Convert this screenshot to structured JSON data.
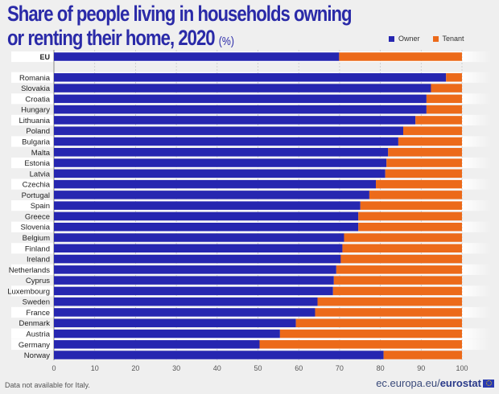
{
  "title_main": "Share of people living in households owning or renting their home, 2020",
  "title_line1": "Share of people living in households owning",
  "title_line2": "or renting their home, 2020",
  "title_unit": "(%)",
  "legend": [
    {
      "label": "Owner",
      "color": "#2626b0"
    },
    {
      "label": "Tenant",
      "color": "#ec6a1a"
    }
  ],
  "footer": {
    "note": "Data not available for Italy.",
    "brand_prefix": "ec.europa.eu/",
    "brand_name": "eurostat",
    "brand_icon": "eu-flag-icon"
  },
  "chart_data": {
    "type": "bar",
    "orientation": "horizontal",
    "stacked": true,
    "title": "Share of people living in households owning or renting their home, 2020 (%)",
    "xlabel": "",
    "ylabel": "",
    "xlim": [
      0,
      100
    ],
    "x_ticks": [
      0,
      10,
      20,
      30,
      40,
      50,
      60,
      70,
      80,
      90,
      100
    ],
    "grid": "vertical-dashed",
    "legend_position": "top-right",
    "categories": [
      "EU",
      "Romania",
      "Slovakia",
      "Croatia",
      "Hungary",
      "Lithuania",
      "Poland",
      "Bulgaria",
      "Malta",
      "Estonia",
      "Latvia",
      "Czechia",
      "Portugal",
      "Spain",
      "Greece",
      "Slovenia",
      "Belgium",
      "Finland",
      "Ireland",
      "Netherlands",
      "Cyprus",
      "Luxembourg",
      "Sweden",
      "France",
      "Denmark",
      "Austria",
      "Germany",
      "Norway"
    ],
    "groups": {
      "EU": [
        0
      ],
      "countries": [
        1,
        26
      ],
      "efta": [
        27
      ]
    },
    "series": [
      {
        "name": "Owner",
        "color": "#2626b0",
        "values": [
          69.9,
          96.1,
          92.4,
          91.3,
          91.3,
          88.6,
          85.6,
          84.4,
          81.9,
          81.5,
          81.2,
          78.9,
          77.3,
          75.1,
          74.6,
          74.6,
          71.1,
          70.7,
          70.3,
          69.2,
          68.6,
          68.4,
          64.6,
          64.0,
          59.3,
          55.4,
          50.4,
          80.8
        ]
      },
      {
        "name": "Tenant",
        "color": "#ec6a1a",
        "values": [
          30.1,
          3.9,
          7.6,
          8.7,
          8.7,
          11.4,
          14.4,
          15.6,
          18.1,
          18.5,
          18.8,
          21.1,
          22.7,
          24.9,
          25.4,
          25.4,
          28.9,
          29.3,
          29.7,
          30.8,
          31.4,
          31.6,
          35.4,
          36.0,
          40.7,
          44.6,
          49.6,
          19.2
        ]
      }
    ]
  }
}
